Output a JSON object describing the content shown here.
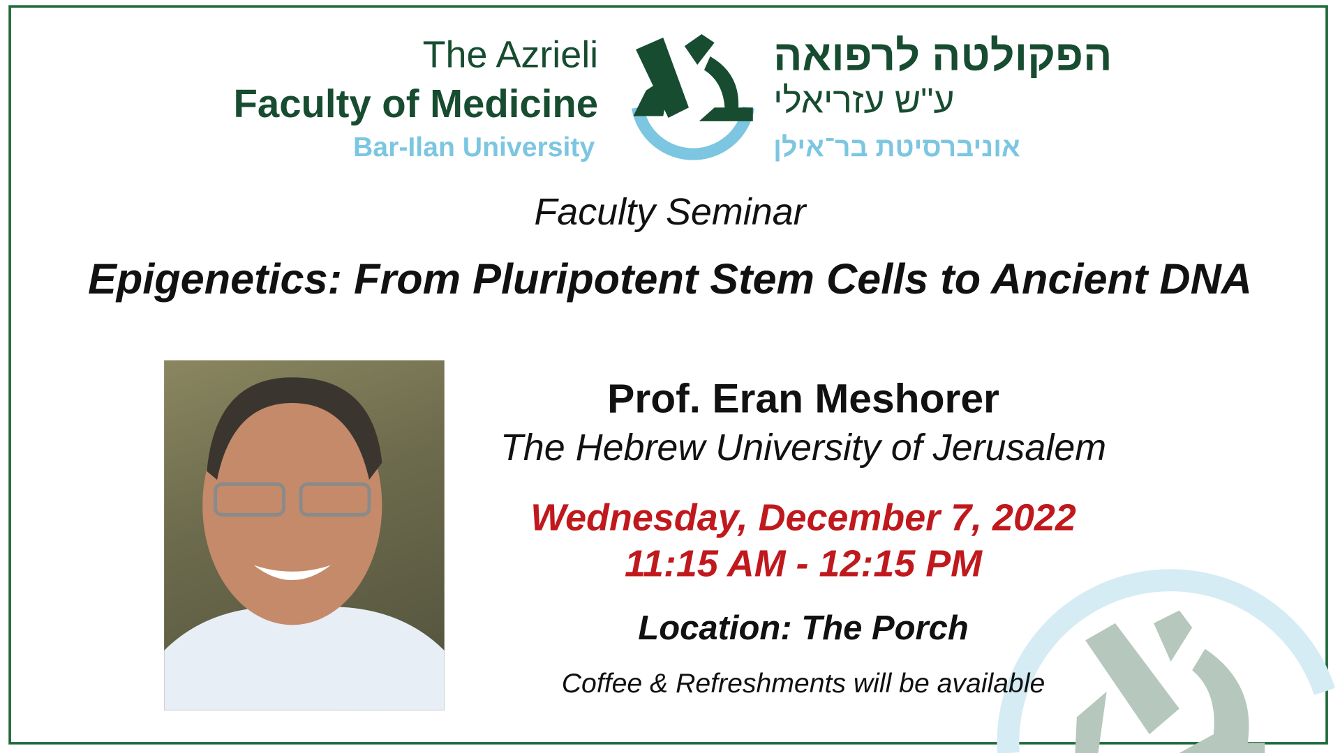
{
  "logo": {
    "en_line1": "The Azrieli",
    "en_line2": "Faculty of Medicine",
    "en_line3": "Bar-Ilan University",
    "he_line1": "הפקולטה לרפואה",
    "he_line2": "ע\"ש עזריאלי",
    "he_line3": "אוניברסיטת בר־אילן",
    "colors": {
      "dark_green": "#174c30",
      "light_blue": "#7cc6e1"
    }
  },
  "event": {
    "type": "Faculty Seminar",
    "title": "Epigenetics: From Pluripotent Stem Cells to Ancient DNA",
    "speaker": "Prof. Eran Meshorer",
    "affiliation": "The Hebrew University of Jerusalem",
    "date": "Wednesday, December 7, 2022",
    "time": "11:15 AM - 12:15 PM",
    "location": "Location: The Porch",
    "note": "Coffee & Refreshments will be available",
    "accent_color": "#c0191d"
  }
}
